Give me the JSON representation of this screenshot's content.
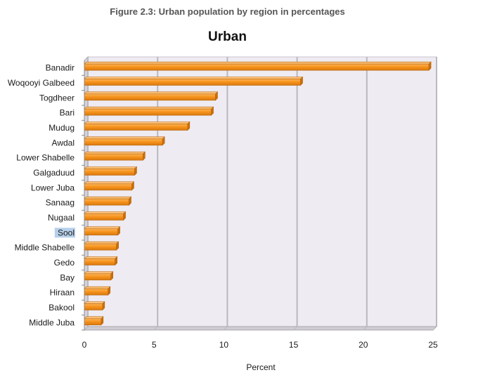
{
  "figure_caption": "Figure 2.3: Urban population by region in percentages",
  "chart_data": {
    "type": "bar",
    "orientation": "horizontal",
    "title": "Urban",
    "xlabel": "Percent",
    "ylabel": "",
    "categories": [
      "Banadir",
      "Woqooyi Galbeed",
      "Togdheer",
      "Bari",
      "Mudug",
      "Awdal",
      "Lower Shabelle",
      "Galgaduud",
      "Lower Juba",
      "Sanaag",
      "Nugaal",
      "Sool",
      "Middle Shabelle",
      "Gedo",
      "Bay",
      "Hiraan",
      "Bakool",
      "Middle Juba"
    ],
    "values": [
      24.7,
      15.5,
      9.4,
      9.1,
      7.4,
      5.6,
      4.2,
      3.6,
      3.4,
      3.2,
      2.8,
      2.4,
      2.3,
      2.2,
      1.9,
      1.7,
      1.3,
      1.2
    ],
    "xlim": [
      0,
      25
    ],
    "xticks": [
      0,
      5,
      10,
      15,
      20,
      25
    ],
    "grid": true,
    "highlighted_category": "Sool",
    "colors": {
      "bar": "#f7941d",
      "bar_edge": "#b8650a",
      "plot_background": "#eeebf2",
      "gridline": "#b9b9bd",
      "highlight": "#b7d0ea"
    }
  }
}
